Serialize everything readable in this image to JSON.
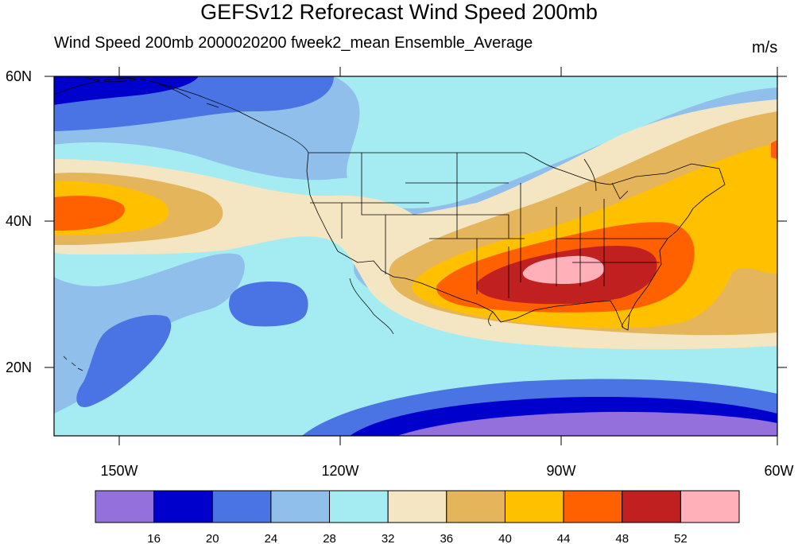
{
  "title": "GEFSv12 Reforecast Wind Speed 200mb",
  "subtitle": "Wind Speed 200mb 2000020200 fweek2_mean Ensemble_Average",
  "units": "m/s",
  "map": {
    "lon_range": [
      -160,
      -60
    ],
    "lat_range": [
      10,
      60
    ],
    "x_ticks": [
      "150W",
      "120W",
      "90W",
      "60W"
    ],
    "y_ticks": [
      "60N",
      "40N",
      "20N"
    ]
  },
  "colorbar": {
    "labels": [
      "16",
      "20",
      "24",
      "28",
      "32",
      "36",
      "40",
      "44",
      "48",
      "52"
    ],
    "colors": [
      "#9370db",
      "#0000cd",
      "#4a74e3",
      "#8fbfea",
      "#a5ecf2",
      "#f5e6c3",
      "#e5b55c",
      "#ffc000",
      "#ff6000",
      "#c02020",
      "#ffb0b8"
    ]
  }
}
